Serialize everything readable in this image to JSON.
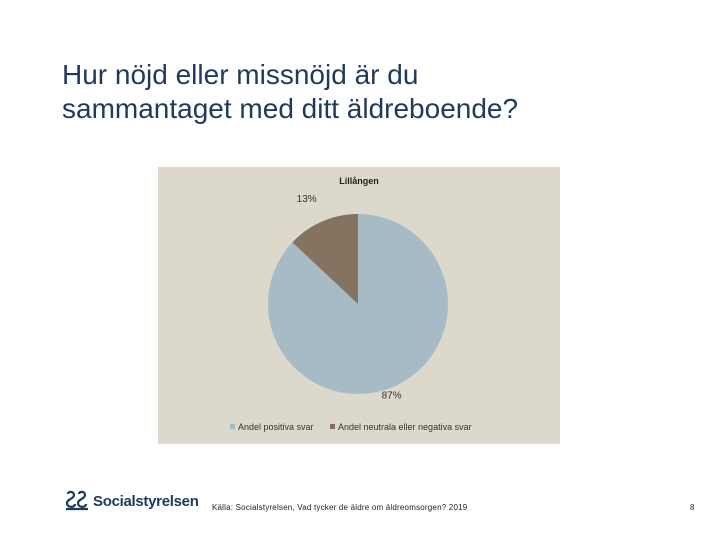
{
  "slide": {
    "title_line1": "Hur nöjd eller missnöjd är du",
    "title_line2": "sammantaget med ditt äldreboende?",
    "source": "Källa: Socialstyrelsen, Vad tycker de äldre om äldreomsorgen? 2019",
    "page_number": "8",
    "logo_text": "Socialstyrelsen"
  },
  "colors": {
    "panel_background": "#dcd8cc",
    "positive": "#a7bbc7",
    "neutral_negative": "#85725f",
    "title": "#1f3a5c"
  },
  "chart_data": {
    "type": "pie",
    "title": "Lillången",
    "categories": [
      "Andel positiva svar",
      "Andel neutrala eller negativa svar"
    ],
    "values": [
      87,
      13
    ],
    "labels": [
      "87%",
      "13%"
    ],
    "colors": [
      "#a7bbc7",
      "#85725f"
    ],
    "legend_position": "bottom"
  }
}
